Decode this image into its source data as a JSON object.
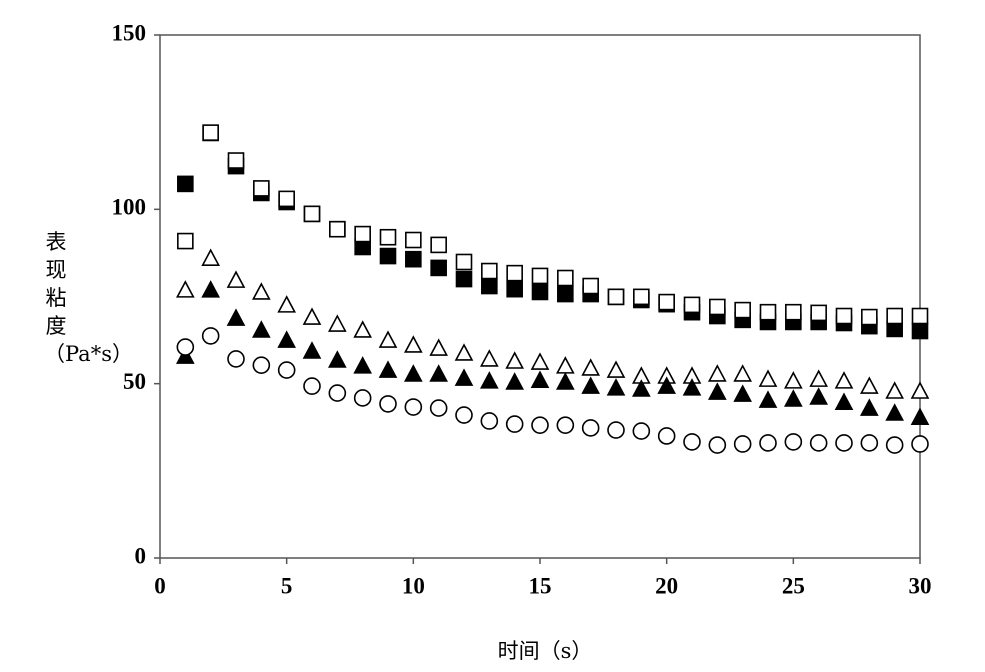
{
  "chart_data": {
    "type": "scatter",
    "x_label": "时间（s）",
    "y_label": "表现粘度（Pa*s）",
    "x": [
      1,
      2,
      3,
      4,
      5,
      6,
      7,
      8,
      9,
      10,
      11,
      12,
      13,
      14,
      15,
      16,
      17,
      18,
      19,
      20,
      21,
      22,
      23,
      24,
      25,
      26,
      27,
      28,
      29,
      30
    ],
    "xlim": [
      0,
      30
    ],
    "xticks": [
      0,
      5,
      10,
      15,
      20,
      25,
      30
    ],
    "ylim": [
      0,
      150
    ],
    "yticks": [
      0,
      50,
      100,
      150
    ],
    "series": [
      {
        "marker": "square",
        "filled": true,
        "color": "#000000",
        "values": [
          107.3,
          121.9,
          112.4,
          104.7,
          102.1,
          98.7,
          94.3,
          89.2,
          86.6,
          85.7,
          83.2,
          80,
          78,
          77.1,
          76.3,
          75.7,
          75.7,
          74.9,
          74,
          72.8,
          70.5,
          69.4,
          68.3,
          67.7,
          67.7,
          67.7,
          67.4,
          66.5,
          65.7,
          65.1
        ]
      },
      {
        "marker": "square",
        "filled": false,
        "color": "#000000",
        "values": [
          90.9,
          122,
          114,
          106,
          103,
          98.7,
          94.3,
          92.9,
          92,
          91.2,
          89.8,
          84.9,
          82.3,
          81.7,
          80.9,
          80.3,
          78,
          74.9,
          74.9,
          73.4,
          72.6,
          72,
          71.1,
          70.5,
          70.5,
          70.3,
          69.4,
          69.1,
          69.4,
          69.4
        ]
      },
      {
        "marker": "triangle",
        "filled": false,
        "color": "#000000",
        "values": [
          76.9,
          86,
          79.7,
          76.3,
          72.6,
          69.1,
          67.1,
          65.4,
          62.5,
          61.1,
          60.2,
          58.8,
          57.1,
          56.5,
          56.2,
          55.1,
          54.5,
          53.9,
          52.2,
          52.2,
          52.2,
          52.8,
          52.8,
          51.3,
          50.8,
          51.3,
          50.8,
          49.3,
          47.9,
          47.9
        ]
      },
      {
        "marker": "triangle",
        "filled": true,
        "color": "#000000",
        "values": [
          57.9,
          76.9,
          68.8,
          65.4,
          62.5,
          59.4,
          56.8,
          55.1,
          53.9,
          52.8,
          52.8,
          51.6,
          50.8,
          50.5,
          51,
          50.5,
          49.3,
          48.8,
          48.5,
          49.3,
          48.8,
          47.6,
          47,
          45.3,
          45.6,
          46.2,
          44.7,
          43,
          41.6,
          40.4
        ]
      },
      {
        "marker": "circle",
        "filled": false,
        "color": "#000000",
        "values": [
          60.5,
          63.7,
          57.1,
          55.3,
          53.9,
          49.3,
          47.3,
          45.9,
          44.2,
          43.3,
          43,
          41,
          39.3,
          38.4,
          38.1,
          38.1,
          37.3,
          36.7,
          36.4,
          35,
          33.3,
          32.4,
          32.7,
          33,
          33.3,
          33,
          33,
          33,
          32.4,
          32.7
        ]
      }
    ]
  }
}
